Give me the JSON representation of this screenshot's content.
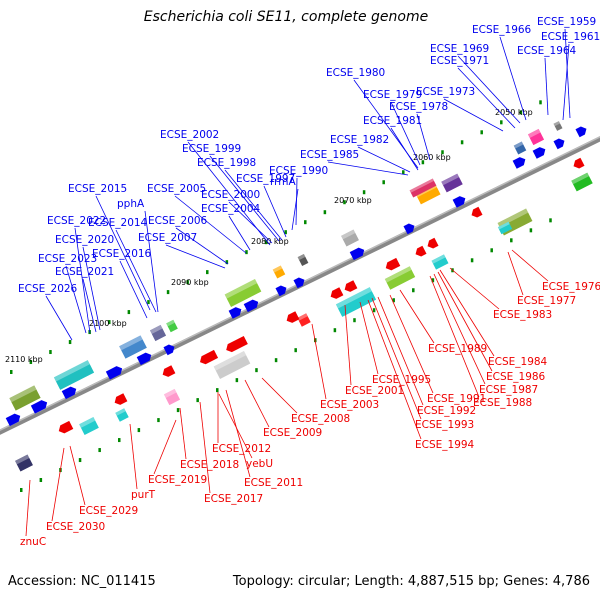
{
  "title": "Escherichia coli SE11, complete genome",
  "footer": {
    "accession": "Accession: NC_011415",
    "topology": "Topology: circular; Length: 4,887,515 bp; Genes: 4,786"
  },
  "colors": {
    "forward": "#0000ee",
    "reverse": "#ee0000",
    "backbone": "#888888",
    "tick": "#008800"
  },
  "scale_labels": [
    "2050 kbp",
    "2060 kbp",
    "2070 kbp",
    "2080 kbp",
    "2090 kbp",
    "2100 kbp",
    "2110 kbp"
  ],
  "forward_genes": [
    "ECSE_1959",
    "ECSE_1961",
    "ECSE_1964",
    "ECSE_1966",
    "ECSE_1969",
    "ECSE_1971",
    "ECSE_1973",
    "ECSE_1978",
    "ECSE_1979",
    "ECSE_1980",
    "ECSE_1981",
    "ECSE_1982",
    "ECSE_1985",
    "ECSE_1990",
    "rrmA",
    "ECSE_1997",
    "ECSE_1998",
    "ECSE_1999",
    "ECSE_2000",
    "ECSE_2002",
    "ECSE_2004",
    "ECSE_2005",
    "ECSE_2006",
    "ECSE_2007",
    "ECSE_2014",
    "pphA",
    "ECSE_2015",
    "ECSE_2016",
    "ECSE_2020",
    "ECSE_2021",
    "ECSE_2022",
    "ECSE_2023",
    "ECSE_2026"
  ],
  "reverse_genes": [
    "ECSE_1976",
    "ECSE_1977",
    "ECSE_1983",
    "ECSE_1984",
    "ECSE_1986",
    "ECSE_1987",
    "ECSE_1988",
    "ECSE_1989",
    "ECSE_1991",
    "ECSE_1992",
    "ECSE_1993",
    "ECSE_1994",
    "ECSE_1995",
    "ECSE_2001",
    "ECSE_2003",
    "ECSE_2008",
    "ECSE_2009",
    "ECSE_2011",
    "ECSE_2012",
    "yebU",
    "ECSE_2017",
    "ECSE_2018",
    "ECSE_2019",
    "purT",
    "ECSE_2029",
    "ECSE_2030",
    "znuC"
  ]
}
